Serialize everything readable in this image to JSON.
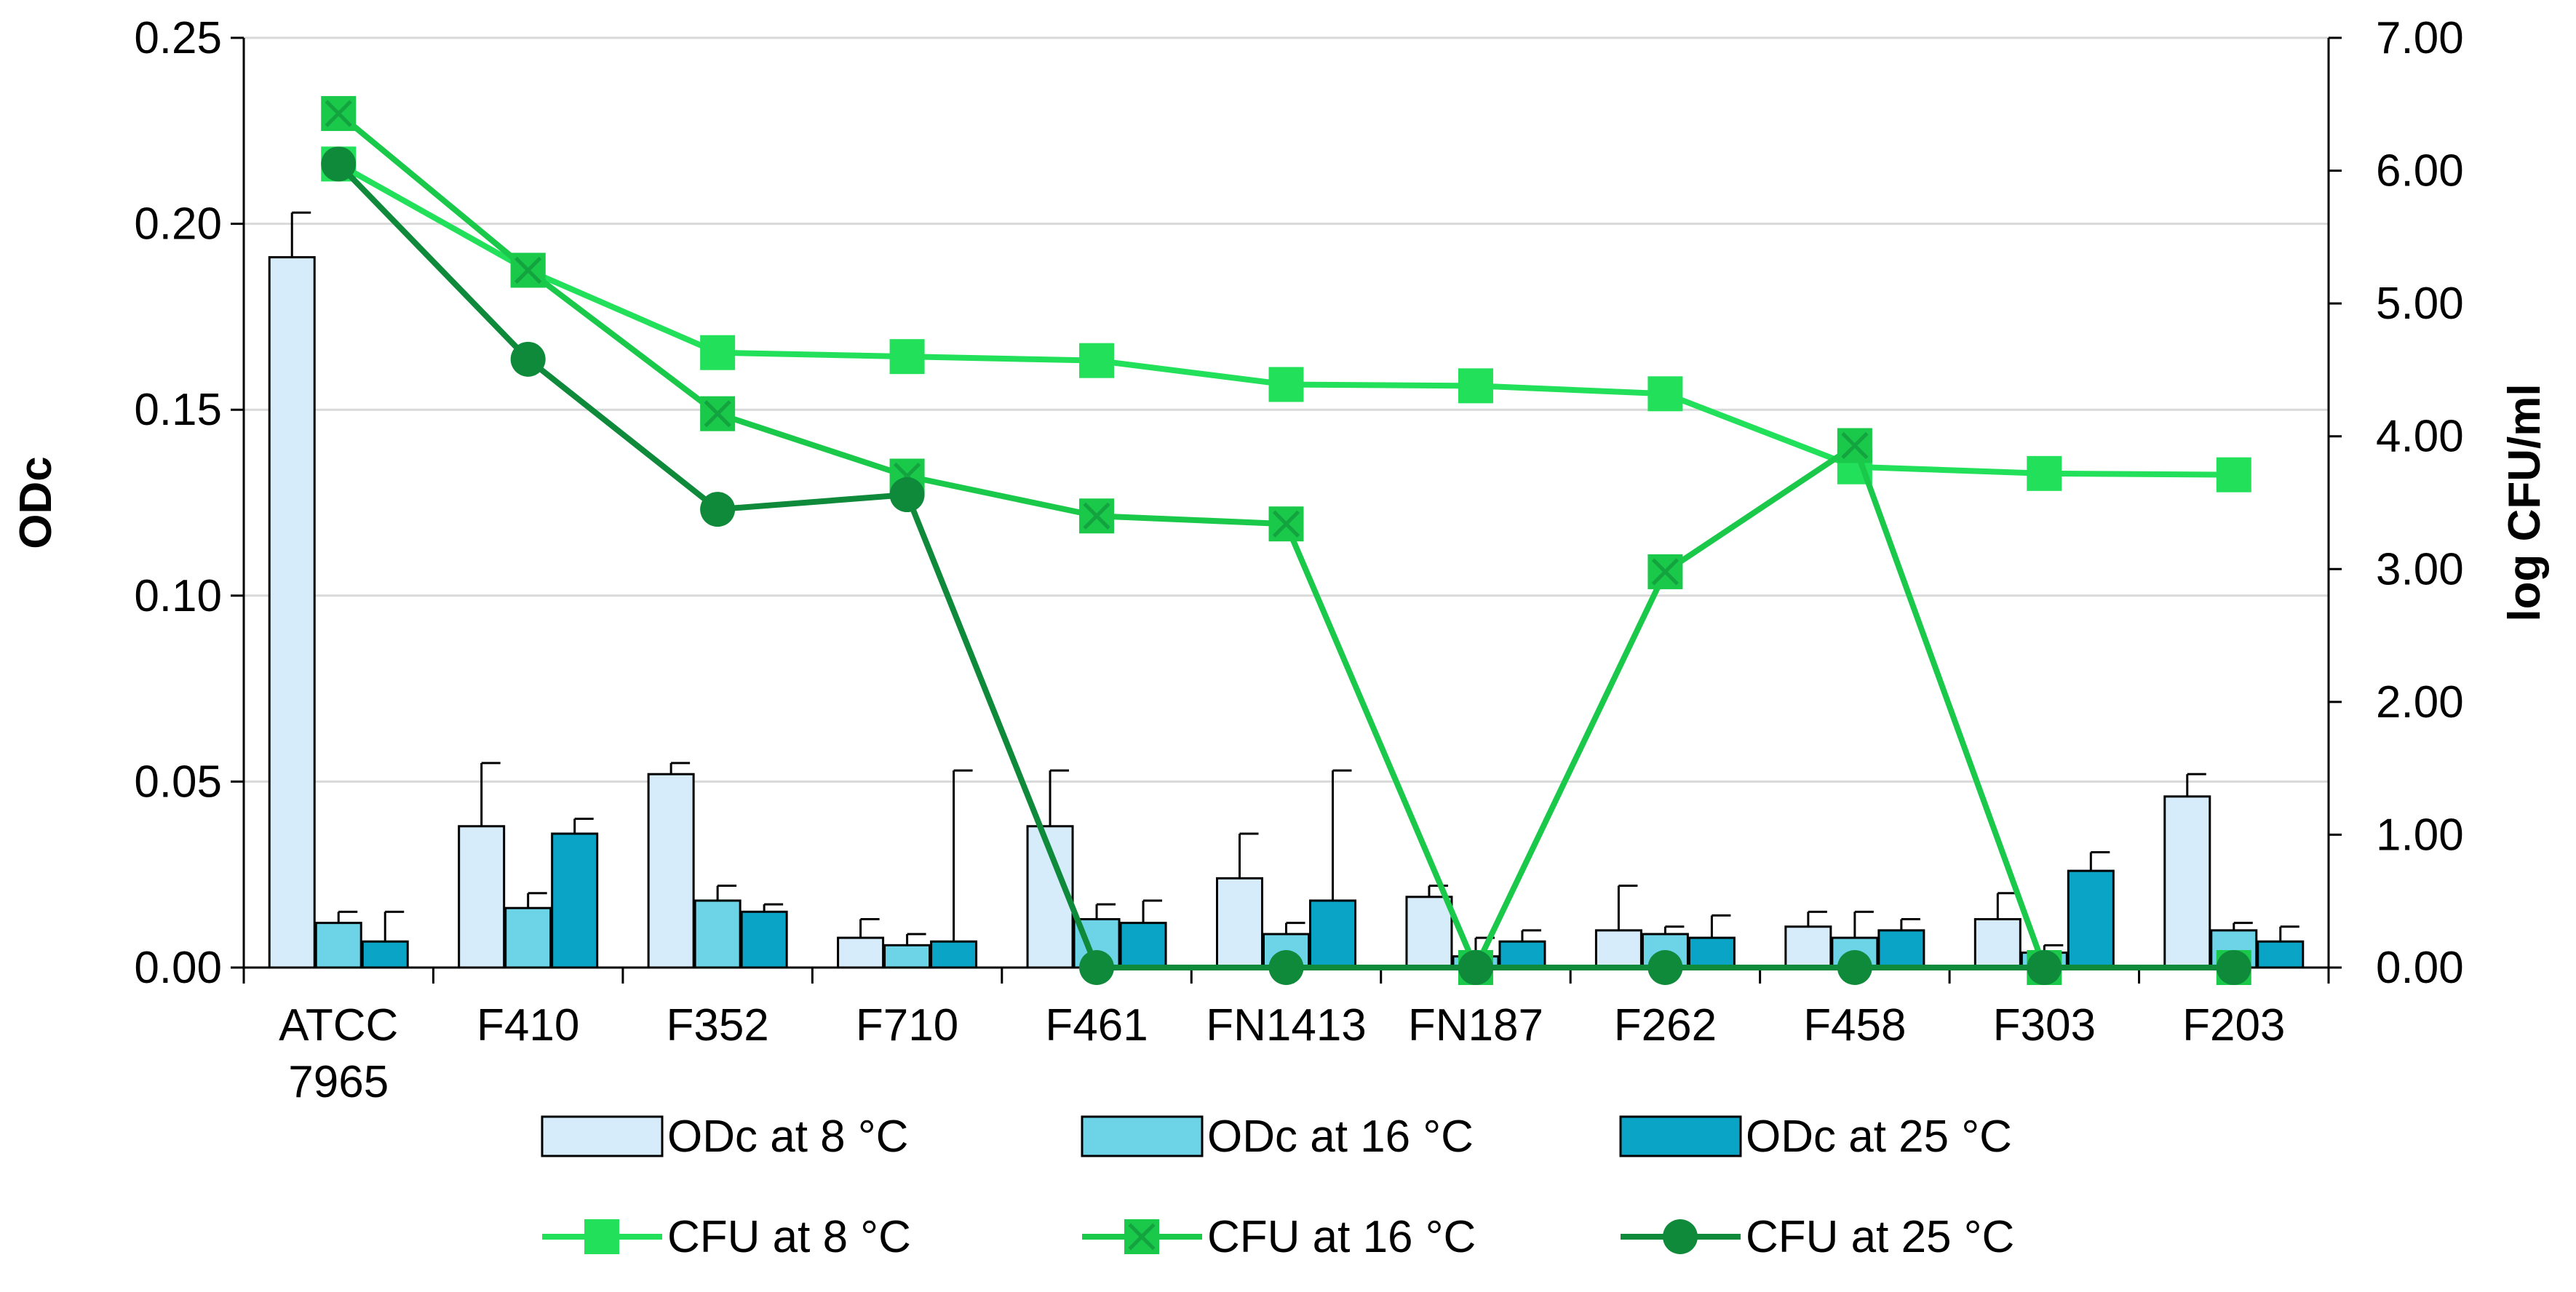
{
  "chart_data": {
    "type": "bar",
    "title": "",
    "categories": [
      [
        "ATCC",
        "7965"
      ],
      [
        "F410"
      ],
      [
        "F352"
      ],
      [
        "F710"
      ],
      [
        "F461"
      ],
      [
        "FN1413"
      ],
      [
        "FN187"
      ],
      [
        "F262"
      ],
      [
        "F458"
      ],
      [
        "F303"
      ],
      [
        "F203"
      ]
    ],
    "ylabel": "ODc",
    "y2label": "log CFU/ml",
    "ylim": [
      0,
      0.25
    ],
    "y2lim": [
      0,
      7
    ],
    "yticks": [
      "0.00",
      "0.05",
      "0.10",
      "0.15",
      "0.20",
      "0.25"
    ],
    "y2ticks": [
      "0.00",
      "1.00",
      "2.00",
      "3.00",
      "4.00",
      "5.00",
      "6.00",
      "7.00"
    ],
    "grid": true,
    "bar_series": [
      {
        "name": "ODc at 8 °C",
        "color": "#d6ecfa",
        "values": [
          0.191,
          0.038,
          0.052,
          0.008,
          0.038,
          0.024,
          0.019,
          0.01,
          0.011,
          0.013,
          0.046
        ],
        "errors": [
          0.012,
          0.017,
          0.003,
          0.005,
          0.015,
          0.012,
          0.003,
          0.012,
          0.004,
          0.007,
          0.006
        ]
      },
      {
        "name": "ODc at 16 °C",
        "color": "#6dd3e6",
        "values": [
          0.012,
          0.016,
          0.018,
          0.006,
          0.013,
          0.009,
          0.003,
          0.009,
          0.008,
          0.004,
          0.01
        ],
        "errors": [
          0.003,
          0.004,
          0.004,
          0.003,
          0.004,
          0.003,
          0.005,
          0.002,
          0.007,
          0.002,
          0.002
        ]
      },
      {
        "name": "ODc at 25 °C",
        "color": "#0aa5c6",
        "values": [
          0.007,
          0.036,
          0.015,
          0.007,
          0.012,
          0.018,
          0.007,
          0.008,
          0.01,
          0.026,
          0.007
        ],
        "errors": [
          0.008,
          0.004,
          0.002,
          0.046,
          0.006,
          0.035,
          0.003,
          0.006,
          0.003,
          0.005,
          0.004
        ]
      }
    ],
    "line_series": [
      {
        "name": "CFU at 8 °C",
        "color": "#22e05a",
        "marker": "square",
        "values": [
          6.05,
          5.25,
          4.63,
          4.6,
          4.57,
          4.39,
          4.38,
          4.32,
          3.77,
          3.72,
          3.71
        ]
      },
      {
        "name": "CFU at 16 °C",
        "color": "#1ac84a",
        "marker": "square-x",
        "values": [
          6.43,
          5.25,
          4.17,
          3.7,
          3.4,
          3.34,
          0.0,
          2.98,
          3.93,
          0.0,
          0.0
        ]
      },
      {
        "name": "CFU at 25 °C",
        "color": "#0e8a3a",
        "marker": "circle",
        "values": [
          6.05,
          4.58,
          3.45,
          3.56,
          0.0,
          0.0,
          0.0,
          0.0,
          0.0,
          0.0,
          0.0
        ]
      }
    ],
    "legend": {
      "position": "bottom",
      "rows": [
        [
          "ODc at 8 °C",
          "ODc at 16 °C",
          "ODc at 25 °C"
        ],
        [
          "CFU at 8 °C",
          "CFU at 16 °C",
          "CFU at 25 °C"
        ]
      ]
    }
  }
}
